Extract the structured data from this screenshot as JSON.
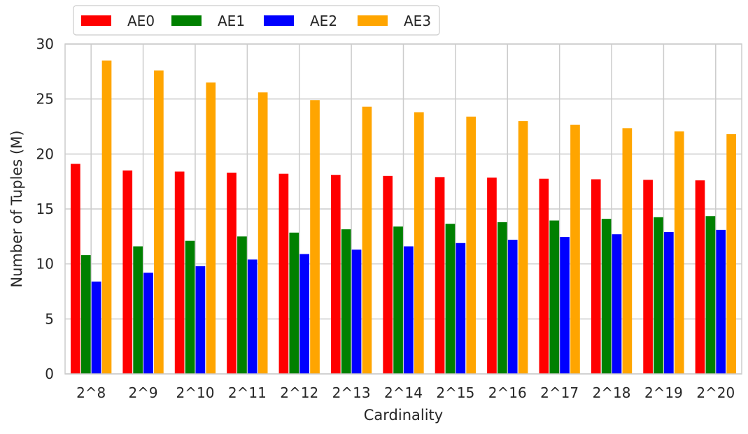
{
  "chart_data": {
    "type": "bar",
    "title": "",
    "xlabel": "Cardinality",
    "ylabel": "Number of Tuples (M)",
    "ylim": [
      0,
      30
    ],
    "yticks": [
      "0",
      "5",
      "10",
      "15",
      "20",
      "25",
      "30"
    ],
    "grid": true,
    "legend_position": "top-left, above plot",
    "categories": [
      "2^8",
      "2^9",
      "2^10",
      "2^11",
      "2^12",
      "2^13",
      "2^14",
      "2^15",
      "2^16",
      "2^17",
      "2^18",
      "2^19",
      "2^20"
    ],
    "series": [
      {
        "name": "AE0",
        "color": "#ff0000",
        "values": [
          19.1,
          18.5,
          18.4,
          18.3,
          18.2,
          18.1,
          18.0,
          17.9,
          17.85,
          17.75,
          17.7,
          17.65,
          17.6
        ]
      },
      {
        "name": "AE1",
        "color": "#008000",
        "values": [
          10.8,
          11.6,
          12.1,
          12.5,
          12.85,
          13.15,
          13.4,
          13.65,
          13.8,
          13.95,
          14.1,
          14.25,
          14.35
        ]
      },
      {
        "name": "AE2",
        "color": "#0000ff",
        "values": [
          8.4,
          9.2,
          9.8,
          10.4,
          10.9,
          11.3,
          11.6,
          11.9,
          12.2,
          12.45,
          12.7,
          12.9,
          13.1
        ]
      },
      {
        "name": "AE3",
        "color": "#ffa500",
        "values": [
          28.5,
          27.6,
          26.5,
          25.6,
          24.9,
          24.3,
          23.8,
          23.4,
          23.0,
          22.65,
          22.35,
          22.05,
          21.8
        ]
      }
    ]
  }
}
